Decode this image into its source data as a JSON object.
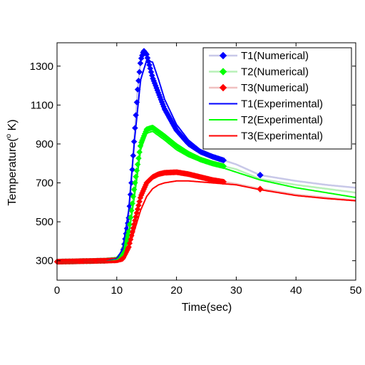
{
  "chart_data": {
    "type": "line",
    "title": "",
    "xlabel": "Time(sec)",
    "ylabel_prefix": "Temperature(",
    "ylabel_sup": "o",
    "ylabel_suffix": " K)",
    "xlim": [
      0,
      50
    ],
    "ylim": [
      200,
      1420
    ],
    "xticks": [
      0,
      10,
      20,
      30,
      40,
      50
    ],
    "yticks": [
      300,
      500,
      700,
      900,
      1100,
      1300
    ],
    "grid": false,
    "legend_position": "top-right",
    "series": [
      {
        "name": "T1(Numerical)",
        "color": "#0000ff",
        "marker": "diamond",
        "line_color": "#c8c8e8",
        "x": [
          0,
          5,
          8,
          10,
          11,
          12,
          12.5,
          13,
          13.5,
          14,
          14.5,
          15,
          16,
          18,
          20,
          22,
          24,
          26,
          28,
          30,
          34,
          40,
          45,
          50
        ],
        "y": [
          295,
          298,
          300,
          305,
          340,
          520,
          720,
          960,
          1180,
          1330,
          1380,
          1360,
          1240,
          1080,
          970,
          900,
          860,
          835,
          815,
          795,
          740,
          710,
          690,
          675
        ],
        "marker_ranges": [
          [
            0,
            28
          ]
        ],
        "extra_markers": [
          [
            34,
            740
          ]
        ]
      },
      {
        "name": "T2(Numerical)",
        "color": "#00ff00",
        "marker": "diamond",
        "line_color": "#b8f0b8",
        "x": [
          0,
          5,
          8,
          10,
          11,
          12,
          13,
          14,
          15,
          16,
          18,
          20,
          22,
          24,
          26,
          28,
          30,
          34,
          40,
          45,
          50
        ],
        "y": [
          295,
          298,
          300,
          305,
          340,
          450,
          690,
          900,
          975,
          985,
          940,
          890,
          850,
          820,
          800,
          785,
          770,
          720,
          690,
          670,
          650
        ],
        "marker_ranges": [
          [
            0,
            28
          ]
        ],
        "extra_markers": []
      },
      {
        "name": "T3(Numerical)",
        "color": "#ff0000",
        "marker": "diamond",
        "line_color": "#f0c0c0",
        "x": [
          0,
          5,
          8,
          10,
          11,
          12,
          13,
          14,
          15,
          16,
          17,
          18,
          20,
          22,
          24,
          26,
          28,
          30,
          34,
          40,
          45,
          50
        ],
        "y": [
          295,
          298,
          300,
          302,
          310,
          370,
          500,
          630,
          700,
          730,
          745,
          752,
          755,
          745,
          730,
          715,
          705,
          695,
          670,
          640,
          625,
          610
        ],
        "marker_ranges": [
          [
            0,
            28
          ]
        ],
        "extra_markers": [
          [
            34,
            668
          ]
        ]
      },
      {
        "name": "T1(Experimental)",
        "color": "#0000ff",
        "marker": "none",
        "x": [
          0,
          5,
          8,
          10,
          11,
          12,
          13,
          14,
          15,
          16,
          17,
          18,
          20,
          22,
          24,
          26,
          28
        ],
        "y": [
          290,
          292,
          295,
          310,
          360,
          560,
          930,
          1230,
          1330,
          1320,
          1230,
          1130,
          1000,
          920,
          870,
          840,
          820
        ]
      },
      {
        "name": "T2(Experimental)",
        "color": "#00ff00",
        "marker": "none",
        "x": [
          0,
          5,
          8,
          10,
          11,
          12,
          13,
          14,
          15,
          16,
          18,
          20,
          22,
          24,
          26,
          28,
          30,
          34,
          40,
          45,
          50
        ],
        "y": [
          290,
          292,
          295,
          305,
          330,
          430,
          640,
          870,
          955,
          965,
          920,
          870,
          835,
          810,
          790,
          775,
          755,
          715,
          675,
          650,
          625
        ]
      },
      {
        "name": "T3(Experimental)",
        "color": "#ff0000",
        "marker": "none",
        "x": [
          0,
          5,
          8,
          10,
          11,
          12,
          13,
          14,
          15,
          16,
          17,
          18,
          20,
          22,
          24,
          26,
          28,
          30,
          34,
          40,
          45,
          50
        ],
        "y": [
          290,
          292,
          295,
          300,
          310,
          360,
          460,
          560,
          630,
          670,
          690,
          700,
          710,
          710,
          705,
          700,
          695,
          690,
          665,
          635,
          620,
          608
        ]
      }
    ]
  }
}
